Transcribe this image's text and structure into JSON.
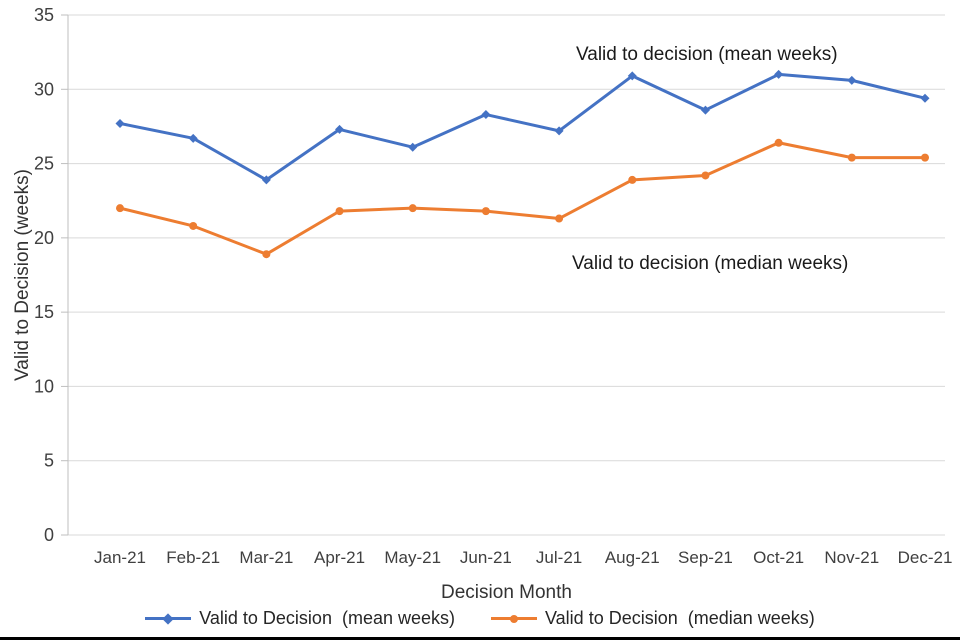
{
  "chart_data": {
    "type": "line",
    "title": "",
    "xlabel": "Decision Month",
    "ylabel": "Valid to Decision (weeks)",
    "ylim": [
      0,
      35
    ],
    "ytick_step": 5,
    "grid": true,
    "legend_position": "bottom",
    "categories": [
      "Jan-21",
      "Feb-21",
      "Mar-21",
      "Apr-21",
      "May-21",
      "Jun-21",
      "Jul-21",
      "Aug-21",
      "Sep-21",
      "Oct-21",
      "Nov-21",
      "Dec-21"
    ],
    "series": [
      {
        "name": "Valid to Decision  (mean weeks)",
        "annotation": "Valid to decision (mean weeks)",
        "color": "#4472C4",
        "marker": "diamond",
        "values": [
          27.7,
          26.7,
          23.9,
          27.3,
          26.1,
          28.3,
          27.2,
          30.9,
          28.6,
          31.0,
          30.6,
          29.4
        ]
      },
      {
        "name": "Valid to Decision  (median weeks)",
        "annotation": "Valid to decision (median weeks)",
        "color": "#ED7D31",
        "marker": "circle",
        "values": [
          22.0,
          20.8,
          18.9,
          21.8,
          22.0,
          21.8,
          21.3,
          23.9,
          24.2,
          26.4,
          25.4,
          25.4
        ]
      }
    ]
  }
}
